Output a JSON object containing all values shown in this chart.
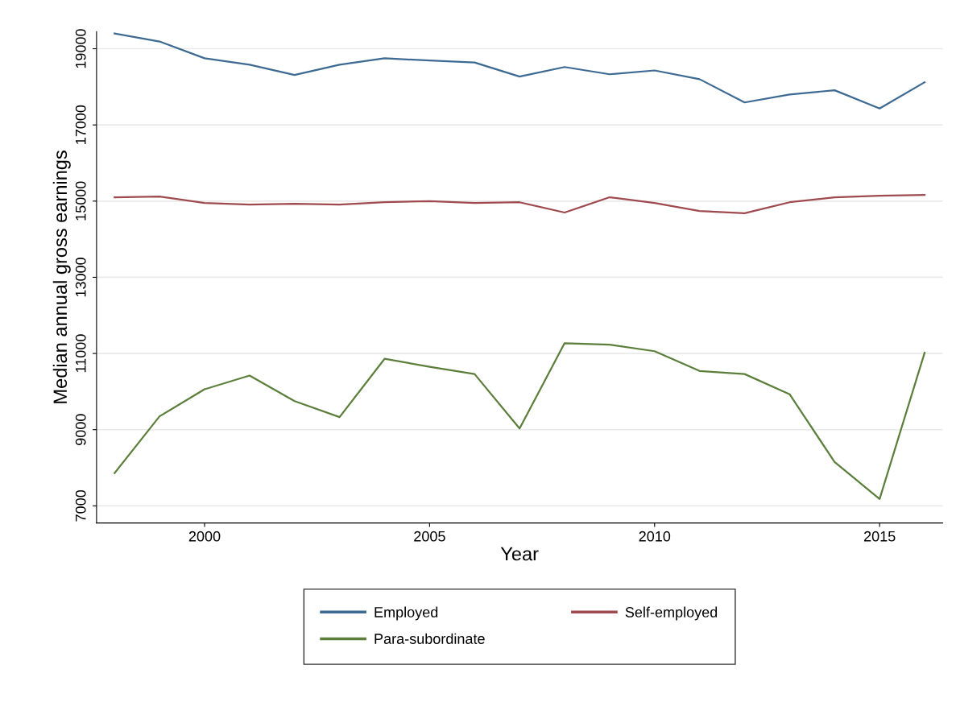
{
  "chart_data": {
    "type": "line",
    "xlabel": "Year",
    "ylabel": "Median annual gross earnings",
    "x": [
      1998,
      1999,
      2000,
      2001,
      2002,
      2003,
      2004,
      2005,
      2006,
      2007,
      2008,
      2009,
      2010,
      2011,
      2012,
      2013,
      2014,
      2015,
      2016
    ],
    "series": [
      {
        "name": "Employed",
        "color": "#3d6a92",
        "values": [
          19400,
          19190,
          18750,
          18580,
          18310,
          18580,
          18750,
          18690,
          18640,
          18270,
          18520,
          18330,
          18430,
          18200,
          17590,
          17800,
          17910,
          17430,
          18120
        ]
      },
      {
        "name": "Self-employed",
        "color": "#9e4a4f",
        "values": [
          15100,
          15120,
          14950,
          14910,
          14930,
          14910,
          14970,
          15000,
          14950,
          14970,
          14700,
          15100,
          14950,
          14740,
          14680,
          14970,
          15100,
          15140,
          15160
        ]
      },
      {
        "name": "Para-subordinate",
        "color": "#5b7f3b",
        "values": [
          7860,
          9350,
          10060,
          10420,
          9750,
          9330,
          10860,
          10650,
          10460,
          9030,
          11270,
          11230,
          11060,
          10540,
          10460,
          9930,
          8150,
          7180,
          11020
        ]
      }
    ],
    "xlim": [
      1997.6,
      2016.4
    ],
    "xticks": [
      2000,
      2005,
      2010,
      2015
    ],
    "ylim": [
      6550,
      19450
    ],
    "yticks": [
      7000,
      9000,
      11000,
      13000,
      15000,
      17000,
      19000
    ],
    "grid": "y",
    "legend": "bottom",
    "marker": "none",
    "line_style": "solid"
  }
}
